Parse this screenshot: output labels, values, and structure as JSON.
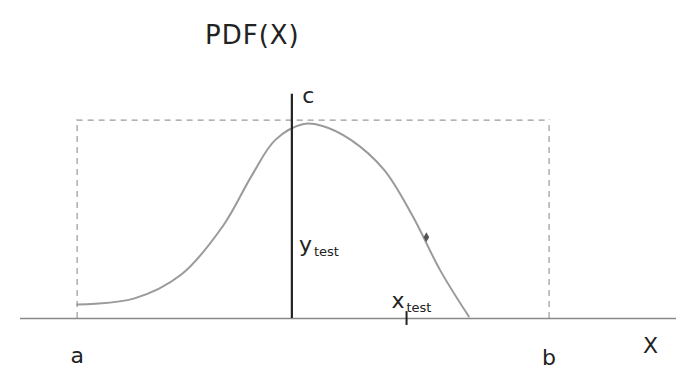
{
  "chart_data": {
    "type": "line",
    "title": "PDF(X)",
    "xlim": [
      -1.2,
      12.7
    ],
    "ylim": [
      0,
      13
    ],
    "tick_labels": false,
    "x": [
      0,
      1.2,
      2.2,
      3.1,
      3.7,
      4.2,
      4.8,
      5.2,
      5.8,
      6.5,
      7.1,
      7.7,
      8.3
    ],
    "values": [
      0.7,
      1.0,
      2.2,
      4.7,
      7.2,
      9.0,
      9.8,
      9.7,
      9.0,
      7.5,
      5.2,
      2.4,
      0.1
    ],
    "color": "#9a9a9a",
    "bounds": {
      "a": 0,
      "b": 10,
      "c": 10,
      "line_style": "dashed"
    },
    "sample": {
      "x": 4.55,
      "top": 11.3
    },
    "point": {
      "x": 7.4,
      "y": 4.1
    },
    "x_test": 6.98,
    "annotations": [
      {
        "text": "a",
        "x": 0,
        "y": -1.9
      },
      {
        "text": "b",
        "x": 10,
        "y": -2
      },
      {
        "text": "X",
        "x": 12.15,
        "y": -1.4
      },
      {
        "text": "c",
        "x": 4.9,
        "y": 11.2
      },
      {
        "text": "y",
        "subscript": "test",
        "x": 4.7,
        "y": 3.7
      },
      {
        "text": "x",
        "subscript": "test",
        "x": 6.66,
        "y": 0.9
      }
    ]
  }
}
